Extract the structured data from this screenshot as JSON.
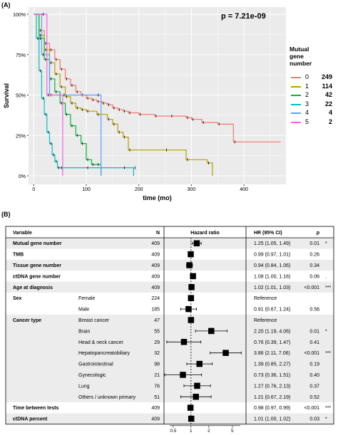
{
  "panel_a_label": "(A)",
  "panel_b_label": "(B)",
  "chart_data": [
    {
      "type": "line",
      "subtype": "kaplan-meier",
      "annotation": "p =  7.21e-09",
      "xlabel": "time (mo)",
      "ylabel": "Survival",
      "xticks": [
        "0",
        "100",
        "200",
        "300",
        "400"
      ],
      "yticks": [
        "0%",
        "25%",
        "50%",
        "75%",
        "100%"
      ],
      "xlim": [
        -10,
        480
      ],
      "ylim": [
        0,
        1
      ],
      "grid": true,
      "background": "#ebebeb",
      "legend_title": [
        "Mutual",
        "gene",
        "number"
      ],
      "legend_position": "right",
      "series": [
        {
          "name": "0",
          "count": "249",
          "color": "#f8766d",
          "points": [
            [
              0,
              1.0
            ],
            [
              10,
              0.9
            ],
            [
              20,
              0.82
            ],
            [
              30,
              0.78
            ],
            [
              40,
              0.72
            ],
            [
              50,
              0.66
            ],
            [
              60,
              0.6
            ],
            [
              70,
              0.56
            ],
            [
              80,
              0.52
            ],
            [
              90,
              0.5
            ],
            [
              100,
              0.48
            ],
            [
              110,
              0.47
            ],
            [
              120,
              0.46
            ],
            [
              130,
              0.45
            ],
            [
              140,
              0.44
            ],
            [
              150,
              0.42
            ],
            [
              160,
              0.41
            ],
            [
              170,
              0.4
            ],
            [
              180,
              0.39
            ],
            [
              200,
              0.38
            ],
            [
              230,
              0.37
            ],
            [
              260,
              0.37
            ],
            [
              290,
              0.36
            ],
            [
              300,
              0.35
            ],
            [
              320,
              0.33
            ],
            [
              350,
              0.32
            ],
            [
              380,
              0.21
            ],
            [
              470,
              0.21
            ]
          ]
        },
        {
          "name": "1",
          "count": "114",
          "color": "#b79f00",
          "points": [
            [
              0,
              1.0
            ],
            [
              10,
              0.87
            ],
            [
              20,
              0.78
            ],
            [
              30,
              0.7
            ],
            [
              40,
              0.63
            ],
            [
              50,
              0.55
            ],
            [
              60,
              0.49
            ],
            [
              70,
              0.45
            ],
            [
              80,
              0.42
            ],
            [
              90,
              0.41
            ],
            [
              100,
              0.4
            ],
            [
              120,
              0.38
            ],
            [
              140,
              0.35
            ],
            [
              150,
              0.32
            ],
            [
              160,
              0.27
            ],
            [
              170,
              0.24
            ],
            [
              180,
              0.16
            ],
            [
              250,
              0.16
            ],
            [
              290,
              0.1
            ],
            [
              330,
              0.08
            ],
            [
              340,
              0.0
            ]
          ]
        },
        {
          "name": "2",
          "count": "42",
          "color": "#00ba38",
          "points": [
            [
              0,
              1.0
            ],
            [
              10,
              0.85
            ],
            [
              20,
              0.72
            ],
            [
              30,
              0.6
            ],
            [
              40,
              0.52
            ],
            [
              50,
              0.45
            ],
            [
              60,
              0.38
            ],
            [
              70,
              0.31
            ],
            [
              80,
              0.25
            ],
            [
              90,
              0.2
            ],
            [
              100,
              0.1
            ],
            [
              110,
              0.07
            ],
            [
              120,
              0.07
            ],
            [
              128,
              0.0
            ]
          ]
        },
        {
          "name": "3",
          "count": "22",
          "color": "#00bfc4",
          "points": [
            [
              0,
              1.0
            ],
            [
              5,
              0.85
            ],
            [
              10,
              0.65
            ],
            [
              15,
              0.48
            ],
            [
              20,
              0.38
            ],
            [
              25,
              0.27
            ],
            [
              30,
              0.2
            ],
            [
              35,
              0.13
            ],
            [
              40,
              0.09
            ],
            [
              45,
              0.05
            ],
            [
              50,
              0.05
            ],
            [
              100,
              0.05
            ],
            [
              170,
              0.05
            ],
            [
              190,
              0.05
            ],
            [
              190,
              0.0
            ]
          ]
        },
        {
          "name": "4",
          "count": "4",
          "color": "#619cff",
          "points": [
            [
              0,
              1.0
            ],
            [
              15,
              0.75
            ],
            [
              30,
              0.5
            ],
            [
              120,
              0.5
            ],
            [
              128,
              0.0
            ]
          ]
        },
        {
          "name": "5",
          "count": "2",
          "color": "#f564e3",
          "points": [
            [
              0,
              1.0
            ],
            [
              15,
              1.0
            ],
            [
              25,
              0.5
            ],
            [
              55,
              0.5
            ],
            [
              55,
              0.0
            ]
          ]
        }
      ]
    },
    {
      "type": "forest",
      "headers": {
        "variable": "Variable",
        "n": "N",
        "hr": "Hazard ratio",
        "ci": "HR (95% CI)",
        "p": "p"
      },
      "xlabel_ticks": [
        "0.5",
        "1",
        "2",
        "5"
      ],
      "x_scale": "log",
      "xlim": [
        0.35,
        8.5
      ],
      "reference_line": 1,
      "rows": [
        {
          "variable": "Mutual gene number",
          "sub": "",
          "n": "409",
          "hr": 1.25,
          "lo": 1.05,
          "hi": 1.49,
          "ci": "1.25 (1.05, 1.49)",
          "p": "0.01",
          "sig": "*",
          "shade": true
        },
        {
          "variable": "TMB",
          "sub": "",
          "n": "409",
          "hr": 0.99,
          "lo": 0.97,
          "hi": 1.01,
          "ci": "0.99 (0.97, 1.01)",
          "p": "0.26",
          "sig": "",
          "shade": false
        },
        {
          "variable": "Tissue gene number",
          "sub": "",
          "n": "409",
          "hr": 0.94,
          "lo": 0.84,
          "hi": 1.06,
          "ci": "0.94 (0.84, 1.06)",
          "p": "0.34",
          "sig": "",
          "shade": true
        },
        {
          "variable": "ctDNA gene number",
          "sub": "",
          "n": "409",
          "hr": 1.08,
          "lo": 1.0,
          "hi": 1.16,
          "ci": "1.08 (1.00, 1.16)",
          "p": "0.06",
          "sig": ".",
          "shade": false
        },
        {
          "variable": "Age at diagnosis",
          "sub": "",
          "n": "409",
          "hr": 1.02,
          "lo": 1.01,
          "hi": 1.03,
          "ci": "1.02 (1.01, 1.03)",
          "p": "<0.001",
          "sig": "***",
          "shade": true
        },
        {
          "variable": "Sex",
          "sub": "Female",
          "n": "224",
          "hr": 1.0,
          "lo": null,
          "hi": null,
          "ci": "Reference",
          "p": "",
          "sig": "",
          "shade": false
        },
        {
          "variable": "",
          "sub": "Male",
          "n": "185",
          "hr": 0.91,
          "lo": 0.67,
          "hi": 1.24,
          "ci": "0.91 (0.67, 1.24)",
          "p": "0.56",
          "sig": "",
          "shade": false
        },
        {
          "variable": "Cancer type",
          "sub": "Breast cancer",
          "n": "47",
          "hr": 1.0,
          "lo": null,
          "hi": null,
          "ci": "Reference",
          "p": "",
          "sig": "",
          "shade": true
        },
        {
          "variable": "",
          "sub": "Brain",
          "n": "55",
          "hr": 2.2,
          "lo": 1.19,
          "hi": 4.06,
          "ci": "2.20 (1.19, 4.06)",
          "p": "0.01",
          "sig": "*",
          "shade": true
        },
        {
          "variable": "",
          "sub": "Head & neck cancer",
          "n": "29",
          "hr": 0.76,
          "lo": 0.39,
          "hi": 1.47,
          "ci": "0.76 (0.39, 1.47)",
          "p": "0.41",
          "sig": "",
          "shade": true
        },
        {
          "variable": "",
          "sub": "Hepatopancreatobiliary",
          "n": "32",
          "hr": 3.86,
          "lo": 2.11,
          "hi": 7.06,
          "ci": "3.86 (2.11, 7.06)",
          "p": "<0.001",
          "sig": "***",
          "shade": true
        },
        {
          "variable": "",
          "sub": "Gastrointestinal",
          "n": "98",
          "hr": 1.39,
          "sig": "",
          "lo": 0.85,
          "hi": 2.27,
          "ci": "1.39 (0.85, 2.27)",
          "p": "0.19",
          "shade": true
        },
        {
          "variable": "",
          "sub": "Gynecologic",
          "n": "21",
          "hr": 0.73,
          "lo": 0.36,
          "hi": 1.51,
          "ci": "0.73 (0.36, 1.51)",
          "p": "0.40",
          "sig": "",
          "shade": true
        },
        {
          "variable": "",
          "sub": "Lung",
          "n": "76",
          "hr": 1.27,
          "lo": 0.76,
          "hi": 2.13,
          "ci": "1.27 (0.76, 2.13)",
          "p": "0.37",
          "sig": "",
          "shade": true
        },
        {
          "variable": "",
          "sub": "Others / unknown primary",
          "n": "51",
          "hr": 1.21,
          "lo": 0.67,
          "hi": 2.19,
          "ci": "1.21 (0.67, 2.19)",
          "p": "0.52",
          "sig": "",
          "shade": true
        },
        {
          "variable": "Time between tests",
          "sub": "",
          "n": "409",
          "hr": 0.98,
          "lo": 0.97,
          "hi": 0.99,
          "ci": "0.98 (0.97, 0.99)",
          "p": "<0.001",
          "sig": "***",
          "shade": false
        },
        {
          "variable": "ctDNA percent",
          "sub": "",
          "n": "409",
          "hr": 1.01,
          "lo": 1.0,
          "hi": 1.02,
          "ci": "1.01 (1.00, 1.02)",
          "p": "0.03",
          "sig": "*",
          "shade": true
        }
      ]
    }
  ]
}
